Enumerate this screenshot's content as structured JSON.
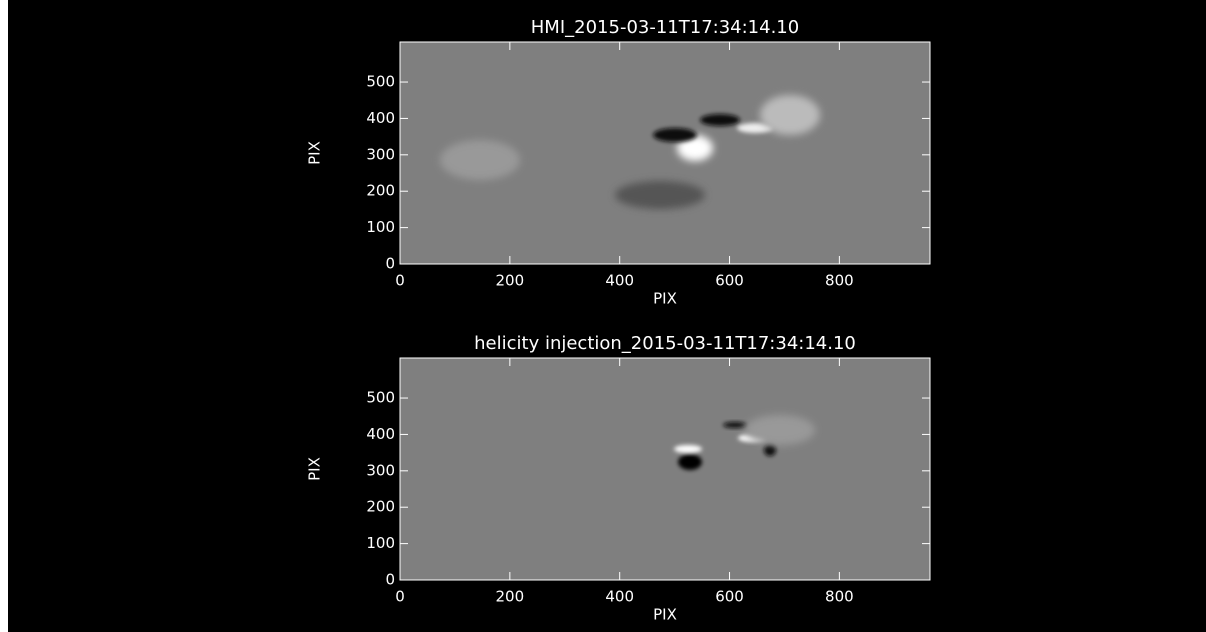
{
  "chart_data": [
    {
      "type": "image",
      "title": "HMI_2015-03-11T17:34:14.10",
      "xlabel": "PIX",
      "ylabel": "PIX",
      "xlim": [
        0,
        965
      ],
      "ylim": [
        0,
        610
      ],
      "xticks": [
        0,
        200,
        400,
        600,
        800
      ],
      "yticks": [
        0,
        100,
        200,
        300,
        400,
        500
      ]
    },
    {
      "type": "image",
      "title": "helicity injection_2015-03-11T17:34:14.10",
      "xlabel": "PIX",
      "ylabel": "PIX",
      "xlim": [
        0,
        965
      ],
      "ylim": [
        0,
        610
      ],
      "xticks": [
        0,
        200,
        400,
        600,
        800
      ],
      "yticks": [
        0,
        100,
        200,
        300,
        400,
        500
      ]
    }
  ]
}
